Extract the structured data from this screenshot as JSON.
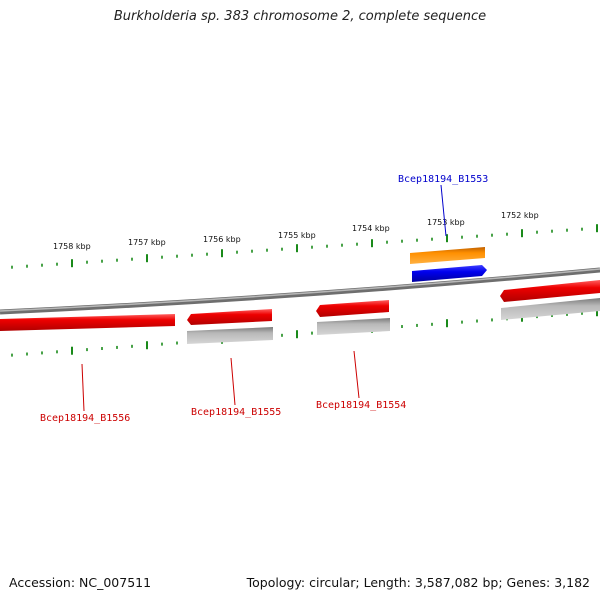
{
  "title": "Burkholderia sp. 383 chromosome 2, complete sequence",
  "footer": {
    "accession": "Accession: NC_007511",
    "summary": "Topology: circular; Length: 3,587,082 bp; Genes: 3,182"
  },
  "scale": {
    "unit": "kbp",
    "labels": [
      "1758 kbp",
      "1757 kbp",
      "1756 kbp",
      "1755 kbp",
      "1754 kbp",
      "1753 kbp",
      "1752 kbp"
    ]
  },
  "genes": [
    {
      "id": "Bcep18194_B1553",
      "color": "#0000cc",
      "strand": "forward"
    },
    {
      "id": "Bcep18194_B1554",
      "color": "#cc0000",
      "strand": "reverse"
    },
    {
      "id": "Bcep18194_B1555",
      "color": "#cc0000",
      "strand": "reverse"
    },
    {
      "id": "Bcep18194_B1556",
      "color": "#cc0000",
      "strand": "reverse"
    }
  ],
  "colors": {
    "backbone": "#808080",
    "ticks": "#1a8a1a",
    "gene_red": "#ee0000",
    "gene_blue": "#0000ee",
    "feature_orange": "#ff8c00",
    "feature_gray": "#a0a0a0"
  }
}
